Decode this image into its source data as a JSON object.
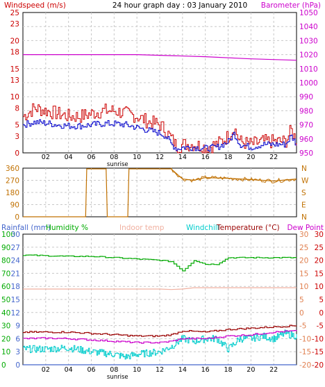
{
  "title": "24 hour graph day : 03 January 2010",
  "colors": {
    "background": "#ffffff",
    "frame": "#000000",
    "grid": "#c8c8c8",
    "windspeed": "#cc0000",
    "wind_avg": "#0000cc",
    "barometer": "#cc00cc",
    "wind_dir": "#c07000",
    "rainfall": "#4466cc",
    "humidity": "#00aa00",
    "indoor_temp": "#f0b0a0",
    "windchill": "#00cccc",
    "temperature": "#990000",
    "dew_point": "#cc00cc",
    "temp_axis": "#cc0000",
    "hum_axis": "#00aa00",
    "barometer_axis": "#cc00cc",
    "dir_axis": "#c07000",
    "rain_axis": "#4466cc",
    "indoor_axis": "#e08050"
  },
  "chart_data": [
    {
      "type": "line",
      "x_ticks": [
        "02",
        "04",
        "06",
        "08",
        "10",
        "12",
        "14",
        "16",
        "18",
        "20",
        "22"
      ],
      "x_marker_label": "sunrise",
      "legend_left": "Windspeed (m/s)",
      "legend_right": "Barometer (hPa)",
      "y_left": {
        "ticks": [
          0,
          3,
          5,
          8,
          10,
          13,
          15,
          18,
          20,
          23,
          25
        ],
        "range": [
          0,
          25
        ]
      },
      "y_right": {
        "ticks": [
          950,
          960,
          970,
          980,
          990,
          1000,
          1010,
          1020,
          1030,
          1040,
          1050
        ],
        "range": [
          950,
          1050
        ]
      },
      "series": [
        {
          "name": "Windspeed (m/s)",
          "axis": "left",
          "x": [
            0,
            1,
            2,
            3,
            4,
            5,
            6,
            7,
            8,
            9,
            10,
            11,
            12,
            12.5,
            13,
            13.5,
            14,
            15,
            16,
            17,
            18,
            18.5,
            19,
            20,
            21,
            22,
            23,
            23.5,
            24
          ],
          "y": [
            6.5,
            8,
            7.5,
            7,
            6.5,
            6.5,
            7,
            7.5,
            7.5,
            7,
            6.5,
            5.5,
            5,
            4,
            2.5,
            1,
            1.5,
            1.5,
            1,
            1.5,
            3,
            4.5,
            2,
            1.5,
            2,
            2,
            2,
            4,
            2
          ]
        },
        {
          "name": "Windspeed average",
          "axis": "left",
          "x": [
            0,
            1,
            2,
            3,
            4,
            5,
            6,
            7,
            8,
            9,
            10,
            11,
            12,
            12.5,
            13,
            13.5,
            14,
            15,
            16,
            17,
            18,
            18.5,
            19,
            20,
            21,
            22,
            23,
            23.5,
            24
          ],
          "y": [
            5,
            5.5,
            5.3,
            5,
            4.8,
            4.8,
            5,
            5.2,
            5.2,
            5,
            4.5,
            4,
            3.5,
            3,
            1.5,
            0.7,
            1,
            1,
            0.8,
            1,
            2,
            3.5,
            1.5,
            1,
            1.5,
            1.5,
            1.5,
            3,
            1.5
          ]
        },
        {
          "name": "Barometer (hPa)",
          "axis": "right",
          "x": [
            0,
            6,
            10,
            12,
            16,
            20,
            24
          ],
          "y": [
            1020,
            1020,
            1020,
            1019.5,
            1018.5,
            1017,
            1016
          ]
        }
      ]
    },
    {
      "type": "line",
      "y_left": {
        "ticks": [
          0,
          90,
          180,
          270,
          360
        ],
        "range": [
          0,
          360
        ]
      },
      "y_right_labels": [
        "N",
        "W",
        "S",
        "E",
        "N"
      ],
      "series": [
        {
          "name": "Wind direction",
          "x": [
            0,
            5.5,
            5.6,
            7.3,
            7.4,
            9.2,
            9.3,
            13,
            14,
            15,
            16,
            18,
            20,
            22,
            24
          ],
          "y": [
            0,
            0,
            355,
            355,
            0,
            0,
            355,
            355,
            280,
            270,
            290,
            285,
            275,
            265,
            280
          ]
        }
      ]
    },
    {
      "type": "line",
      "x_ticks": [
        "02",
        "04",
        "06",
        "08",
        "10",
        "12",
        "14",
        "16",
        "18",
        "20",
        "22"
      ],
      "x_marker_label": "sunrise",
      "legends": [
        "Rainfall (mm)",
        "Humidity %",
        "Indoor temp",
        "Windchill",
        "Temperature (°C)",
        "Dew Point"
      ],
      "y_left_rain": {
        "ticks": [
          0,
          3,
          6,
          9,
          12,
          15,
          18,
          21,
          24,
          27,
          30
        ],
        "range": [
          0,
          30
        ]
      },
      "y_left_hum": {
        "ticks": [
          0,
          10,
          20,
          30,
          40,
          50,
          60,
          70,
          80,
          90,
          100
        ],
        "range": [
          0,
          100
        ]
      },
      "y_right_indoor": {
        "ticks": [
          -20,
          -15,
          -10,
          -5,
          0,
          5,
          10,
          15,
          20,
          25,
          30
        ],
        "range": [
          -20,
          30
        ]
      },
      "y_right_temp": {
        "ticks": [
          -20,
          -15,
          -10,
          -5,
          0,
          5,
          10,
          15,
          20,
          25,
          30
        ],
        "range": [
          -20,
          30
        ]
      },
      "series": [
        {
          "name": "Rainfall (mm)",
          "x": [
            0,
            24
          ],
          "y": [
            0,
            0
          ]
        },
        {
          "name": "Humidity %",
          "x": [
            0,
            4,
            6,
            8,
            10,
            12,
            13,
            14,
            15,
            16,
            17,
            18,
            24
          ],
          "y": [
            84,
            83,
            83,
            82,
            81,
            80,
            79,
            72,
            80,
            77,
            77,
            82,
            82
          ]
        },
        {
          "name": "Indoor temp",
          "x": [
            0,
            12,
            13,
            14,
            15,
            24
          ],
          "y": [
            9,
            9,
            8.8,
            9,
            9.5,
            9.5
          ]
        },
        {
          "name": "Windchill",
          "x": [
            0,
            2,
            4,
            6,
            8,
            9,
            10,
            12,
            13,
            14,
            15,
            16,
            17,
            18,
            19,
            20,
            21,
            22,
            23,
            24
          ],
          "y": [
            -14,
            -14,
            -13.5,
            -15,
            -16,
            -17,
            -16,
            -15,
            -13,
            -10,
            -11,
            -10,
            -10,
            -14,
            -10,
            -10,
            -9,
            -10,
            -8,
            -9
          ]
        },
        {
          "name": "Temperature (°C)",
          "x": [
            0,
            2,
            4,
            6,
            8,
            10,
            12,
            13,
            14,
            16,
            18,
            20,
            22,
            24
          ],
          "y": [
            -7.5,
            -7.5,
            -7.5,
            -8,
            -8.5,
            -9,
            -9,
            -8.5,
            -7,
            -7.5,
            -6.5,
            -6,
            -5.5,
            -5
          ]
        },
        {
          "name": "Dew Point",
          "x": [
            0,
            2,
            4,
            6,
            8,
            10,
            12,
            13,
            14,
            16,
            18,
            20,
            22,
            24
          ],
          "y": [
            -10,
            -9.8,
            -10,
            -10.5,
            -11,
            -11.5,
            -11.5,
            -11,
            -10,
            -10,
            -9,
            -8.5,
            -7.5,
            -7
          ]
        }
      ]
    }
  ]
}
